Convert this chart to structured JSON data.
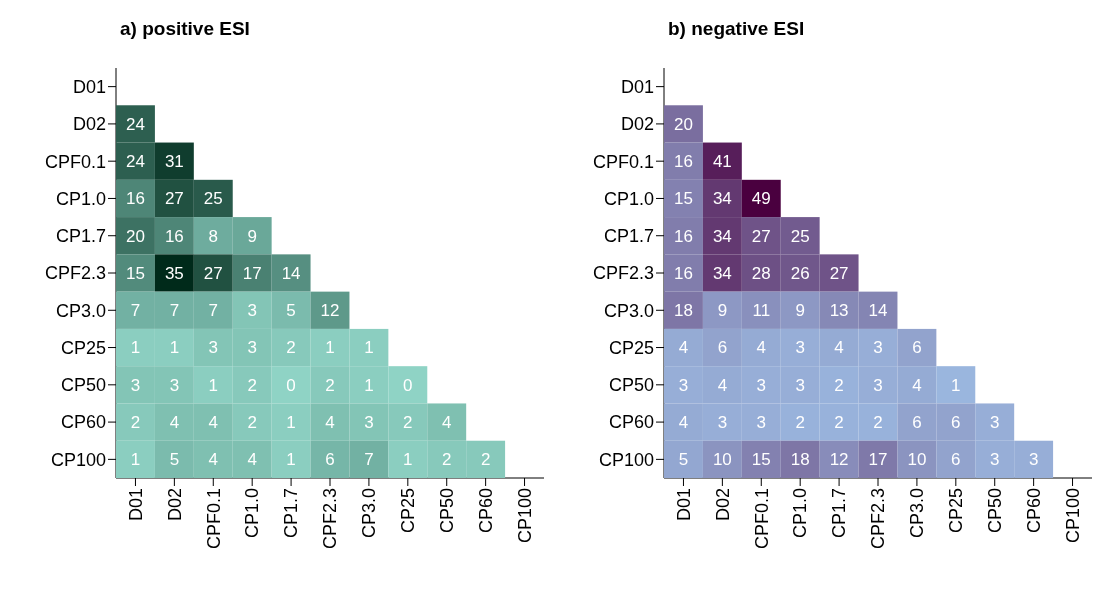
{
  "chart_data": [
    {
      "type": "heatmap",
      "title": "a) positive ESI",
      "categories": [
        "D01",
        "D02",
        "CPF0.1",
        "CP1.0",
        "CP1.7",
        "CPF2.3",
        "CP3.0",
        "CP25",
        "CP50",
        "CP60",
        "CP100"
      ],
      "y_categories": [
        "D01",
        "D02",
        "CPF0.1",
        "CP1.0",
        "CP1.7",
        "CPF2.3",
        "CP3.0",
        "CP25",
        "CP50",
        "CP60",
        "CP100"
      ],
      "cells": [
        [
          null,
          null,
          null,
          null,
          null,
          null,
          null,
          null,
          null,
          null,
          null
        ],
        [
          24,
          null,
          null,
          null,
          null,
          null,
          null,
          null,
          null,
          null,
          null
        ],
        [
          24,
          31,
          null,
          null,
          null,
          null,
          null,
          null,
          null,
          null,
          null
        ],
        [
          16,
          27,
          25,
          null,
          null,
          null,
          null,
          null,
          null,
          null,
          null
        ],
        [
          20,
          16,
          8,
          9,
          null,
          null,
          null,
          null,
          null,
          null,
          null
        ],
        [
          15,
          35,
          27,
          17,
          14,
          null,
          null,
          null,
          null,
          null,
          null
        ],
        [
          7,
          7,
          7,
          3,
          5,
          12,
          null,
          null,
          null,
          null,
          null
        ],
        [
          1,
          1,
          3,
          3,
          2,
          1,
          1,
          null,
          null,
          null,
          null
        ],
        [
          3,
          3,
          1,
          2,
          0,
          2,
          1,
          0,
          null,
          null,
          null
        ],
        [
          2,
          4,
          4,
          2,
          1,
          4,
          3,
          2,
          4,
          null,
          null
        ],
        [
          1,
          5,
          4,
          4,
          1,
          6,
          7,
          1,
          2,
          2,
          null
        ]
      ],
      "colors": [
        "#8fd3c5",
        "#002a1a"
      ],
      "data_labels": true
    },
    {
      "type": "heatmap",
      "title": "b) negative ESI",
      "categories": [
        "D01",
        "D02",
        "CPF0.1",
        "CP1.0",
        "CP1.7",
        "CPF2.3",
        "CP3.0",
        "CP25",
        "CP50",
        "CP60",
        "CP100"
      ],
      "y_categories": [
        "D01",
        "D02",
        "CPF0.1",
        "CP1.0",
        "CP1.7",
        "CPF2.3",
        "CP3.0",
        "CP25",
        "CP50",
        "CP60",
        "CP100"
      ],
      "cells": [
        [
          null,
          null,
          null,
          null,
          null,
          null,
          null,
          null,
          null,
          null,
          null
        ],
        [
          20,
          null,
          null,
          null,
          null,
          null,
          null,
          null,
          null,
          null,
          null
        ],
        [
          16,
          41,
          null,
          null,
          null,
          null,
          null,
          null,
          null,
          null,
          null
        ],
        [
          15,
          34,
          49,
          null,
          null,
          null,
          null,
          null,
          null,
          null,
          null
        ],
        [
          16,
          34,
          27,
          25,
          null,
          null,
          null,
          null,
          null,
          null,
          null
        ],
        [
          16,
          34,
          28,
          26,
          27,
          null,
          null,
          null,
          null,
          null,
          null
        ],
        [
          18,
          9,
          11,
          9,
          13,
          14,
          null,
          null,
          null,
          null,
          null
        ],
        [
          4,
          6,
          4,
          3,
          4,
          3,
          6,
          null,
          null,
          null,
          null
        ],
        [
          3,
          4,
          3,
          3,
          2,
          3,
          4,
          1,
          null,
          null,
          null
        ],
        [
          4,
          3,
          3,
          2,
          2,
          2,
          6,
          6,
          3,
          null,
          null
        ],
        [
          5,
          10,
          15,
          18,
          12,
          17,
          10,
          6,
          3,
          3,
          null
        ]
      ],
      "colors": [
        "#9ab6de",
        "#4a003f"
      ],
      "data_labels": true
    }
  ]
}
